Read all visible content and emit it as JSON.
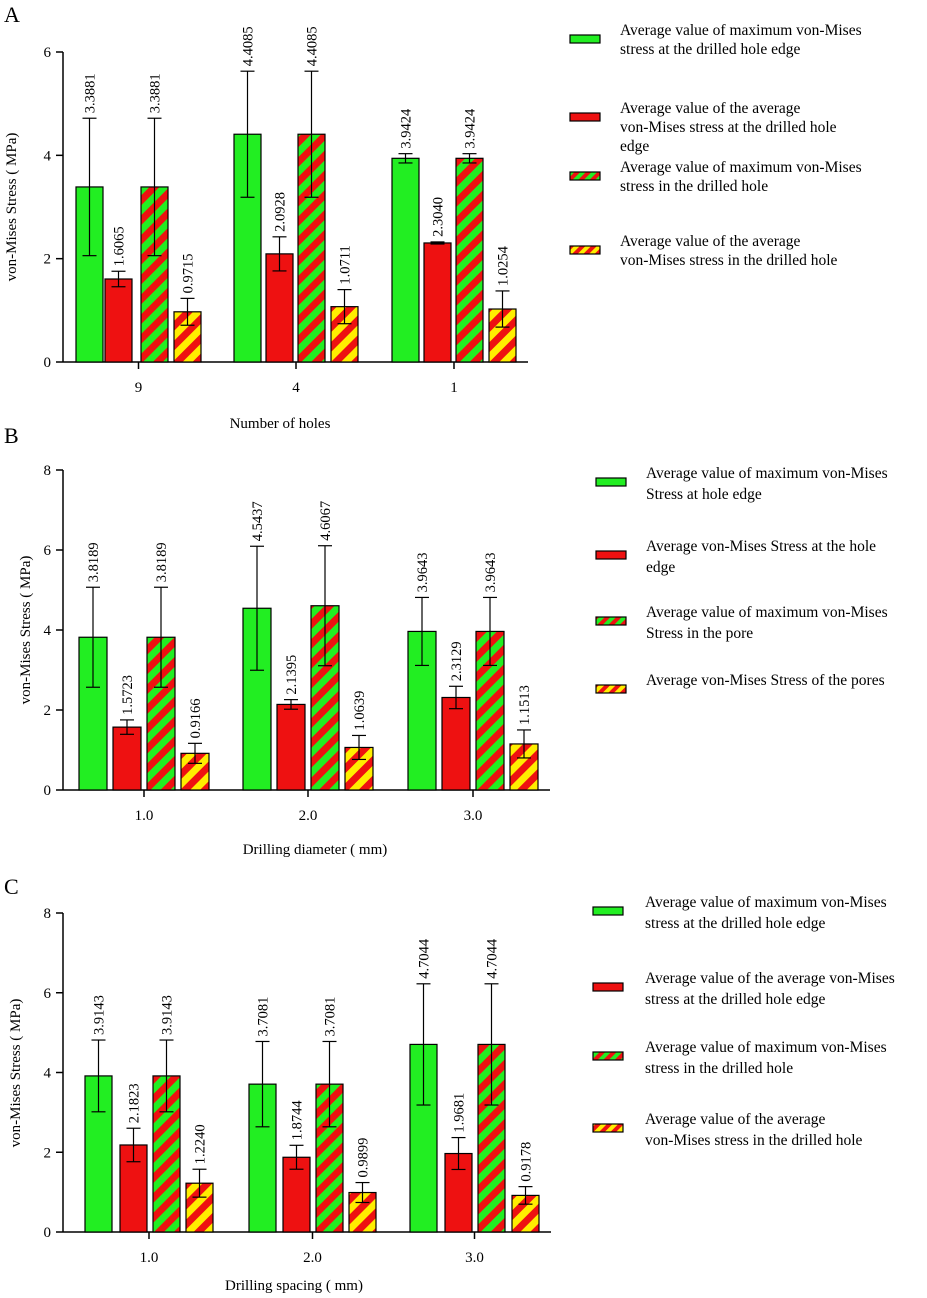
{
  "figure": {
    "colors": {
      "green": "#22ee22",
      "red": "#ee1111",
      "yellow": "#ffee00",
      "edge": "#000000"
    },
    "series_styles": [
      "solid-green",
      "solid-red",
      "stripe-red-green",
      "stripe-red-yellow"
    ]
  },
  "chart_data": [
    {
      "panel_label": "A",
      "type": "bar",
      "xlabel": "Number of holes",
      "ylabel": "von-Mises Stress ( MPa)",
      "ylim": [
        0,
        6
      ],
      "yticks": [
        0,
        2,
        4,
        6
      ],
      "categories": [
        "9",
        "4",
        "1"
      ],
      "series": [
        {
          "name": "Average value of maximum von-Mises stress at the drilled hole edge",
          "legend_lines": [
            "Average value of maximum von-Mises",
            "stress at the drilled hole edge"
          ],
          "values": [
            3.3881,
            4.4085,
            3.9424
          ],
          "labels": [
            "3.3881",
            "4.4085",
            "3.9424"
          ],
          "errors": [
            1.33,
            1.22,
            0.09
          ]
        },
        {
          "name": "Average value of the average von-Mises stress at the drilled hole edge",
          "legend_lines": [
            "Average value of the average",
            "von-Mises stress at the drilled hole",
            "edge"
          ],
          "values": [
            1.6065,
            2.0928,
            2.304
          ],
          "labels": [
            "1.6065",
            "2.0928",
            "2.3040"
          ],
          "errors": [
            0.15,
            0.33,
            0.02
          ]
        },
        {
          "name": "Average value of maximum von-Mises stress in the drilled hole",
          "legend_lines": [
            "Average value of maximum von-Mises",
            "stress in the drilled hole"
          ],
          "values": [
            3.3881,
            4.4085,
            3.9424
          ],
          "labels": [
            "3.3881",
            "4.4085",
            "3.9424"
          ],
          "errors": [
            1.33,
            1.22,
            0.09
          ]
        },
        {
          "name": "Average value of the average von-Mises stress in the drilled hole",
          "legend_lines": [
            "Average value of the average",
            "von-Mises stress in the drilled hole"
          ],
          "values": [
            0.9715,
            1.0711,
            1.0254
          ],
          "labels": [
            "0.9715",
            "1.0711",
            "1.0254"
          ],
          "errors": [
            0.26,
            0.33,
            0.35
          ]
        }
      ]
    },
    {
      "panel_label": "B",
      "type": "bar",
      "xlabel": "Drilling diameter ( mm)",
      "ylabel": "von-Mises Stress ( MPa)",
      "ylim": [
        0,
        8
      ],
      "yticks": [
        0,
        2,
        4,
        6,
        8
      ],
      "categories": [
        "1.0",
        "2.0",
        "3.0"
      ],
      "series": [
        {
          "name": "Average value of maximum von-Mises Stress at hole edge",
          "legend_lines": [
            "Average value of maximum von-Mises",
            "Stress at hole edge"
          ],
          "values": [
            3.8189,
            4.5437,
            3.9643
          ],
          "labels": [
            "3.8189",
            "4.5437",
            "3.9643"
          ],
          "errors": [
            1.25,
            1.55,
            0.85
          ]
        },
        {
          "name": "Average von-Mises Stress at the hole edge",
          "legend_lines": [
            "Average von-Mises Stress at the hole",
            "edge"
          ],
          "values": [
            1.5723,
            2.1395,
            2.3129
          ],
          "labels": [
            "1.5723",
            "2.1395",
            "2.3129"
          ],
          "errors": [
            0.18,
            0.12,
            0.28
          ]
        },
        {
          "name": "Average value of maximum von-Mises Stress in the pore",
          "legend_lines": [
            "Average value of maximum von-Mises",
            "Stress in the pore"
          ],
          "values": [
            3.8189,
            4.6067,
            3.9643
          ],
          "labels": [
            "3.8189",
            "4.6067",
            "3.9643"
          ],
          "errors": [
            1.25,
            1.5,
            0.85
          ]
        },
        {
          "name": "Average von-Mises Stress of the pores",
          "legend_lines": [
            "Average von-Mises Stress of the pores"
          ],
          "values": [
            0.9166,
            1.0639,
            1.1513
          ],
          "labels": [
            "0.9166",
            "1.0639",
            "1.1513"
          ],
          "errors": [
            0.25,
            0.3,
            0.35
          ]
        }
      ]
    },
    {
      "panel_label": "C",
      "type": "bar",
      "xlabel": "Drilling spacing ( mm)",
      "ylabel": "von-Mises Stress ( MPa)",
      "ylim": [
        0,
        8
      ],
      "yticks": [
        0,
        2,
        4,
        6,
        8
      ],
      "categories": [
        "1.0",
        "2.0",
        "3.0"
      ],
      "series": [
        {
          "name": "Average value of maximum von-Mises stress at the drilled hole edge",
          "legend_lines": [
            "Average value of maximum von-Mises",
            "stress at the drilled hole edge"
          ],
          "values": [
            3.9143,
            3.7081,
            4.7044
          ],
          "labels": [
            "3.9143",
            "3.7081",
            "4.7044"
          ],
          "errors": [
            0.9,
            1.07,
            1.52
          ]
        },
        {
          "name": "Average value of the average von-Mises stress at the drilled hole edge",
          "legend_lines": [
            "Average value of the average von-Mises",
            "stress at the drilled hole edge"
          ],
          "values": [
            2.1823,
            1.8744,
            1.9681
          ],
          "labels": [
            "2.1823",
            "1.8744",
            "1.9681"
          ],
          "errors": [
            0.42,
            0.3,
            0.4
          ]
        },
        {
          "name": "Average value of maximum von-Mises stress in the drilled hole",
          "legend_lines": [
            "Average value of maximum von-Mises",
            "stress in the drilled hole"
          ],
          "values": [
            3.9143,
            3.7081,
            4.7044
          ],
          "labels": [
            "3.9143",
            "3.7081",
            "4.7044"
          ],
          "errors": [
            0.9,
            1.07,
            1.52
          ]
        },
        {
          "name": "Average value of the average von-Mises stress in the drilled hole",
          "legend_lines": [
            "Average value of the average",
            "von-Mises stress in the drilled hole"
          ],
          "values": [
            1.224,
            0.9899,
            0.9178
          ],
          "labels": [
            "1.2240",
            "0.9899",
            "0.9178"
          ],
          "errors": [
            0.35,
            0.25,
            0.22
          ]
        }
      ]
    }
  ]
}
